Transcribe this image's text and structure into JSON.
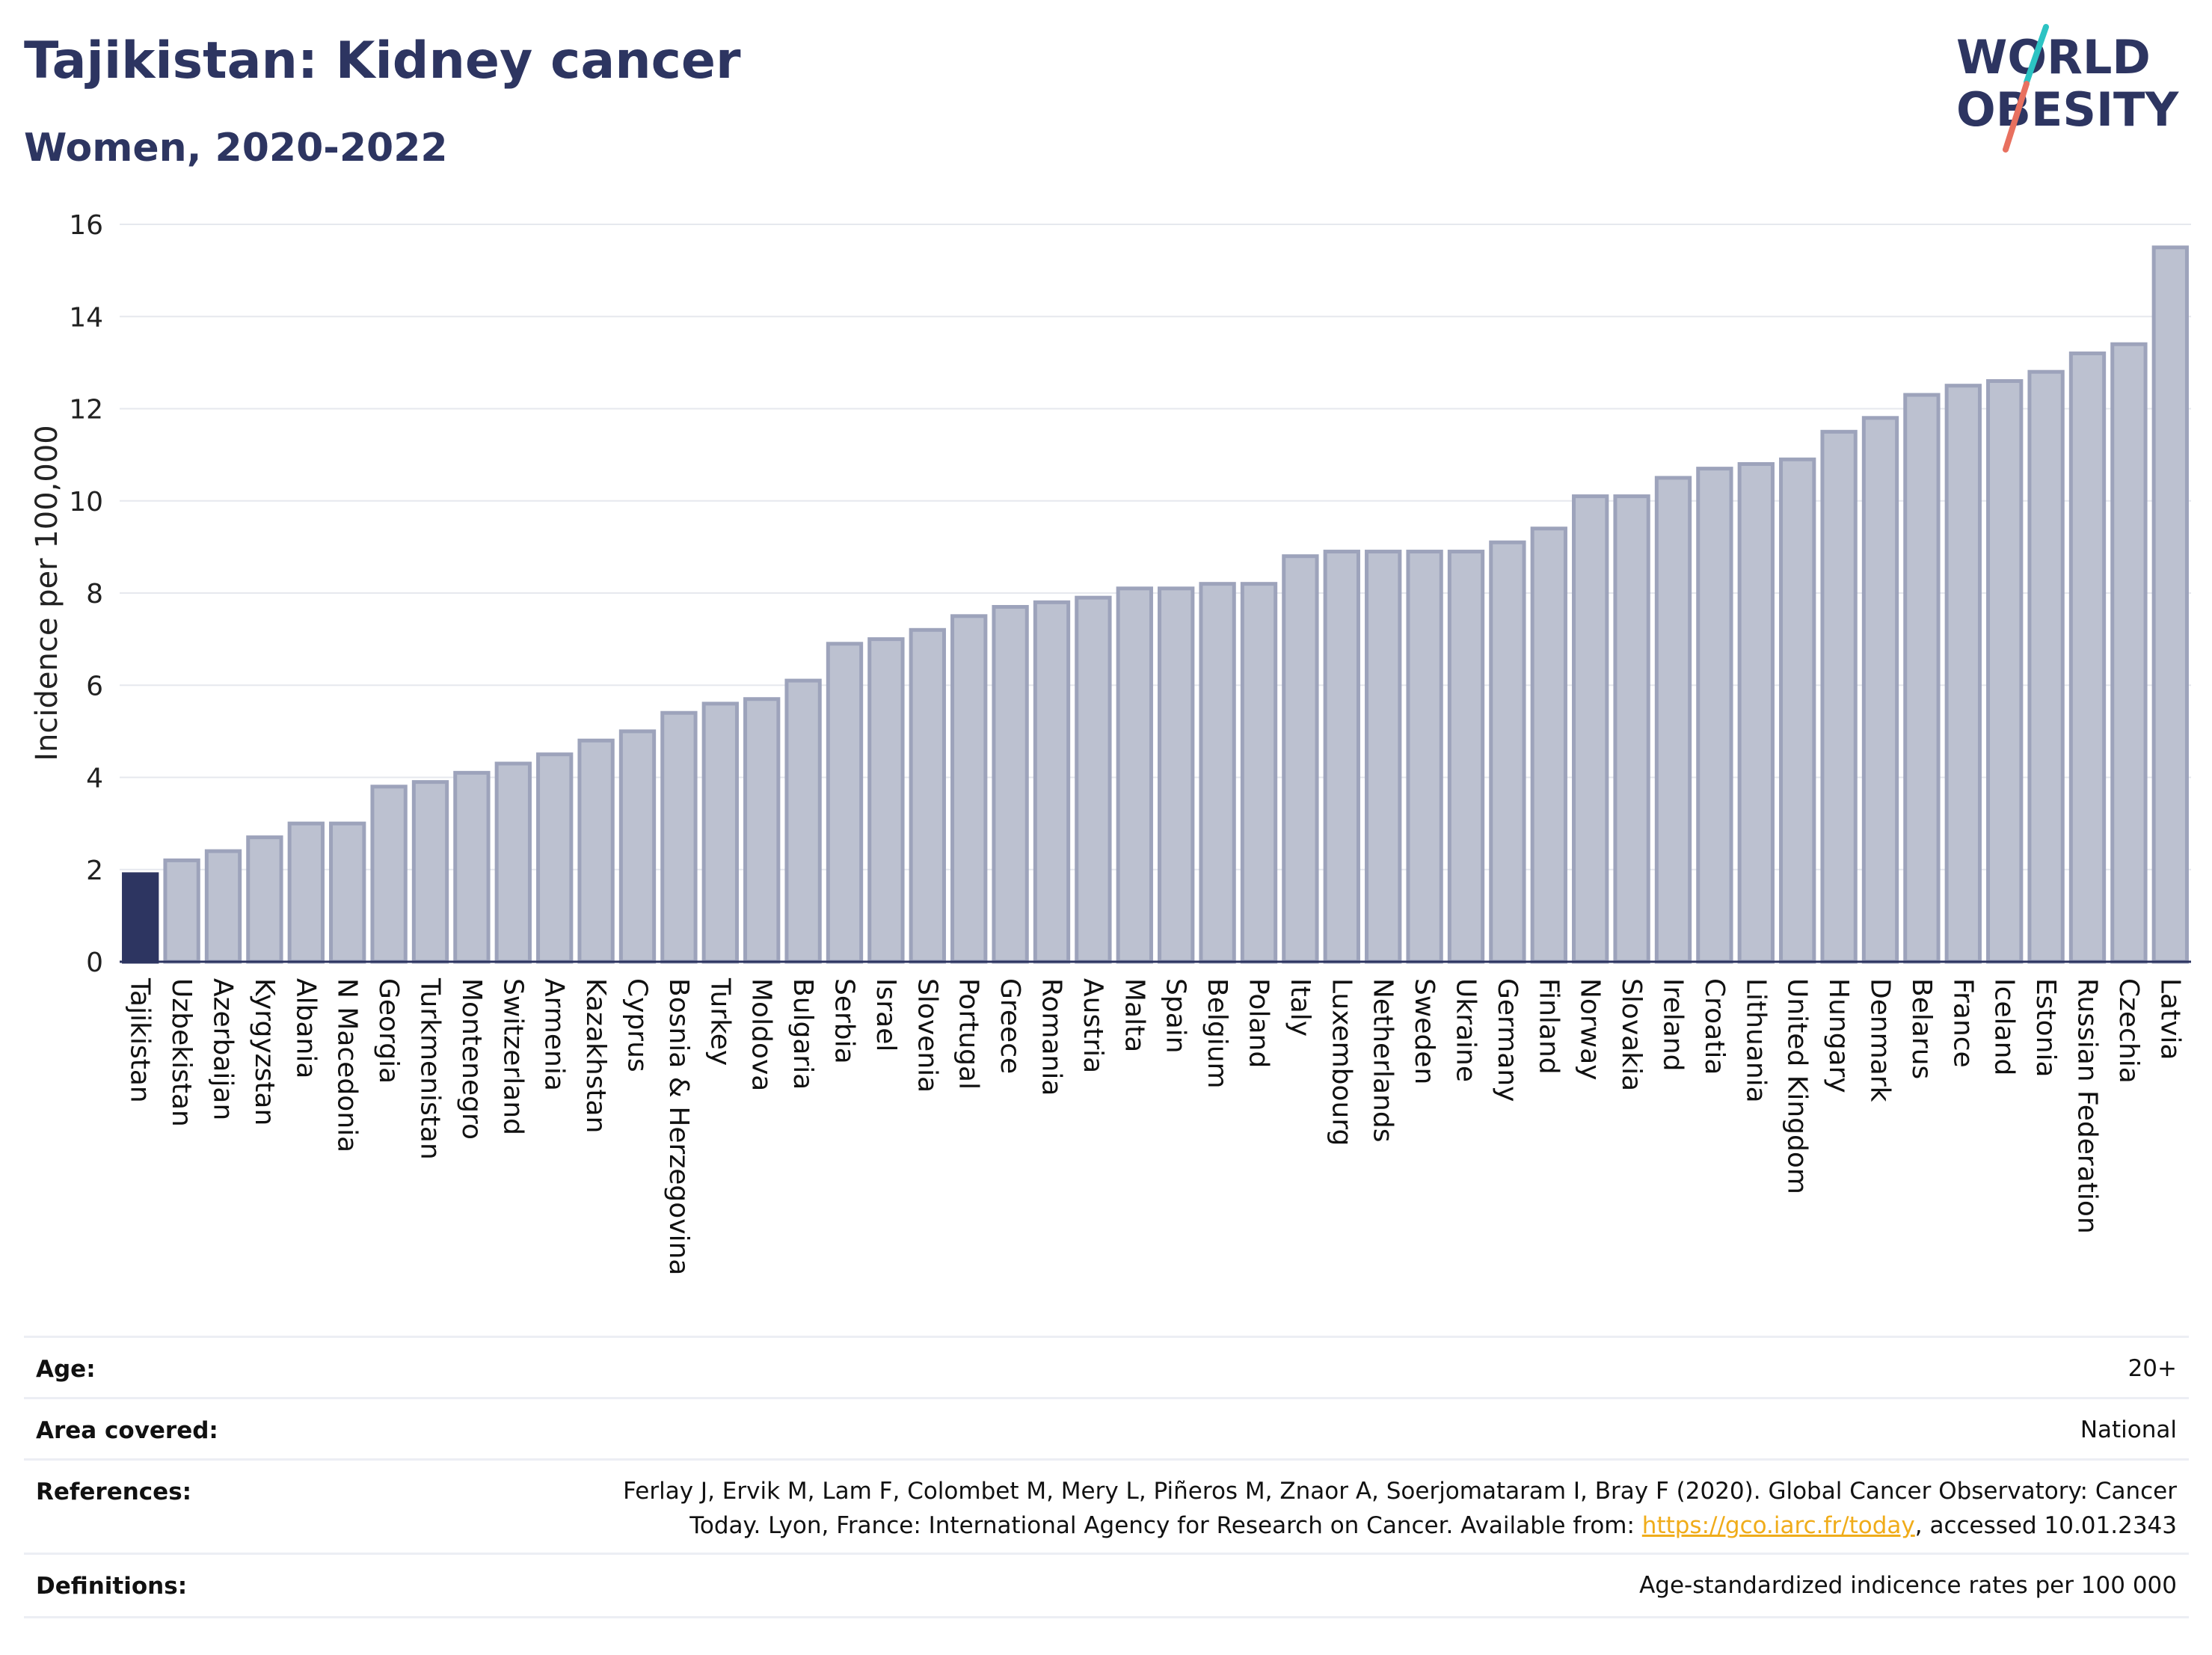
{
  "title": "Tajikistan: Kidney cancer",
  "subtitle": "Women, 2020-2022",
  "logo": {
    "line1": "WORLD",
    "line2": "OBESITY",
    "accent1": "#2cc3c3",
    "accent2": "#e8705f",
    "color": "#2d3561"
  },
  "chart_data": {
    "type": "bar",
    "ylabel": "Incidence per 100,000",
    "xlabel": "",
    "ylim": [
      0,
      16
    ],
    "yticks": [
      0,
      2,
      4,
      6,
      8,
      10,
      12,
      14,
      16
    ],
    "grid": true,
    "highlight": "Tajikistan",
    "highlight_color": "#2d3561",
    "bar_color": "#bcc1d0",
    "bar_edge_color": "#9da3bb",
    "categories": [
      "Tajikistan",
      "Uzbekistan",
      "Azerbaijan",
      "Kyrgyzstan",
      "Albania",
      "N Macedonia",
      "Georgia",
      "Turkmenistan",
      "Montenegro",
      "Switzerland",
      "Armenia",
      "Kazakhstan",
      "Cyprus",
      "Bosnia & Herzegovina",
      "Turkey",
      "Moldova",
      "Bulgaria",
      "Serbia",
      "Israel",
      "Slovenia",
      "Portugal",
      "Greece",
      "Romania",
      "Austria",
      "Malta",
      "Spain",
      "Belgium",
      "Poland",
      "Italy",
      "Luxembourg",
      "Netherlands",
      "Sweden",
      "Ukraine",
      "Germany",
      "Finland",
      "Norway",
      "Slovakia",
      "Ireland",
      "Croatia",
      "Lithuania",
      "United Kingdom",
      "Hungary",
      "Denmark",
      "Belarus",
      "France",
      "Iceland",
      "Estonia",
      "Russian Federation",
      "Czechia",
      "Latvia"
    ],
    "values": [
      1.9,
      2.2,
      2.4,
      2.7,
      3.0,
      3.0,
      3.8,
      3.9,
      4.1,
      4.3,
      4.5,
      4.8,
      5.0,
      5.4,
      5.6,
      5.7,
      6.1,
      6.9,
      7.0,
      7.2,
      7.5,
      7.7,
      7.8,
      7.9,
      8.1,
      8.1,
      8.2,
      8.2,
      8.8,
      8.9,
      8.9,
      8.9,
      8.9,
      9.1,
      9.4,
      10.1,
      10.1,
      10.5,
      10.7,
      10.8,
      10.9,
      11.5,
      11.8,
      12.3,
      12.5,
      12.6,
      12.8,
      13.2,
      13.4,
      15.5
    ]
  },
  "info": {
    "age_label": "Age:",
    "age_value": "20+",
    "area_label": "Area covered:",
    "area_value": "National",
    "references_label": "References:",
    "references_line1": "Ferlay J, Ervik M, Lam F, Colombet M, Mery L, Piñeros M, Znaor A, Soerjomataram I, Bray F (2020). Global Cancer Observatory: Cancer",
    "references_line2_pre": "Today. Lyon, France: International Agency for Research on Cancer. Available from: ",
    "references_link": "https://gco.iarc.fr/today",
    "references_line2_post": ", accessed 10.01.2343",
    "definitions_label": "Definitions:",
    "definitions_value": "Age-standardized indicence rates per 100 000"
  }
}
